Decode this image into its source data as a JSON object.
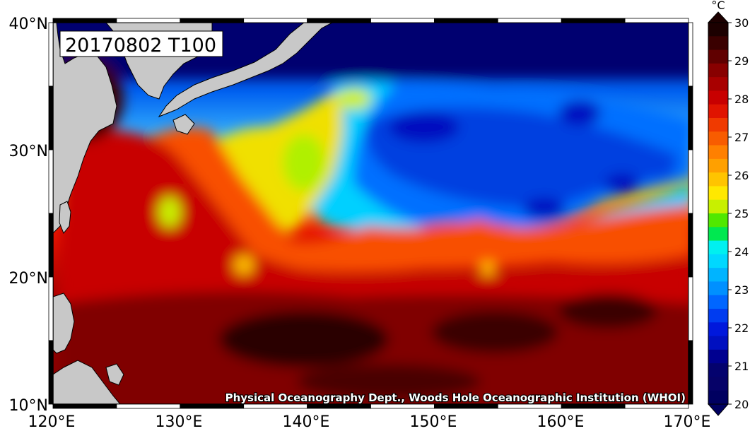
{
  "map": {
    "title": "20170802 T100",
    "credit": "Physical Oceanography Dept., Woods Hole Oceanographic Institution (WHOI)",
    "lon_labels": [
      "120°E",
      "130°E",
      "140°E",
      "150°E",
      "160°E",
      "170°E"
    ],
    "lat_labels": [
      "40°N",
      "30°N",
      "20°N",
      "10°N"
    ],
    "extent": {
      "lon": [
        120,
        170
      ],
      "lat": [
        10,
        40
      ]
    },
    "land_color": "#c8c8c8",
    "variable": "temperature at 100 m depth"
  },
  "colorbar": {
    "unit": "°C",
    "labels": [
      "30",
      "29",
      "28",
      "27",
      "26",
      "25",
      "24",
      "23",
      "22",
      "21",
      "20"
    ],
    "range": [
      20,
      30
    ],
    "colors": [
      "#1c0000",
      "#3a0000",
      "#600000",
      "#880000",
      "#a80000",
      "#c80000",
      "#e01400",
      "#f03a00",
      "#f85c00",
      "#ff8000",
      "#ffa000",
      "#ffc400",
      "#ffe800",
      "#c8f000",
      "#50e800",
      "#00e850",
      "#00f0f0",
      "#00d8ff",
      "#00b4ff",
      "#0090ff",
      "#0066ff",
      "#003cf0",
      "#0018dc",
      "#0010c0",
      "#000090",
      "#04026e",
      "#060268",
      "#000060"
    ]
  }
}
